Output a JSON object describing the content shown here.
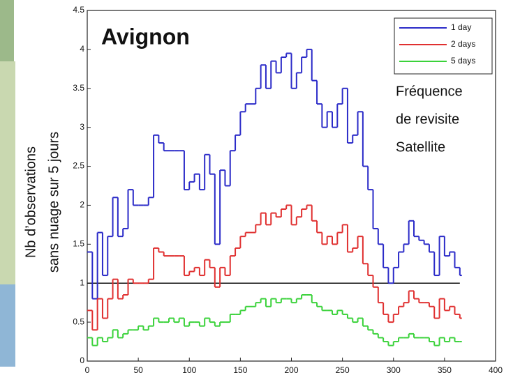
{
  "chart_data": {
    "type": "step",
    "title": "Avignon",
    "ylabel": [
      "Nb d’observations",
      "sans nuage sur 5 jours"
    ],
    "annotation": [
      "Fréquence",
      "de revisite",
      "Satellite"
    ],
    "x": [
      0,
      5,
      10,
      15,
      20,
      25,
      30,
      35,
      40,
      45,
      50,
      55,
      60,
      65,
      70,
      75,
      80,
      85,
      90,
      95,
      100,
      105,
      110,
      115,
      120,
      125,
      130,
      135,
      140,
      145,
      150,
      155,
      160,
      165,
      170,
      175,
      180,
      185,
      190,
      195,
      200,
      205,
      210,
      215,
      220,
      225,
      230,
      235,
      240,
      245,
      250,
      255,
      260,
      265,
      270,
      275,
      280,
      285,
      290,
      295,
      300,
      305,
      310,
      315,
      320,
      325,
      330,
      335,
      340,
      345,
      350,
      355,
      360,
      365
    ],
    "series": [
      {
        "name": "1 day",
        "color": "#2b2bc8",
        "values": [
          1.4,
          0.8,
          1.65,
          1.1,
          1.6,
          2.1,
          1.6,
          1.7,
          2.2,
          2.0,
          2.0,
          2.0,
          2.1,
          2.9,
          2.8,
          2.7,
          2.7,
          2.7,
          2.7,
          2.2,
          2.3,
          2.4,
          2.2,
          2.65,
          2.4,
          1.5,
          2.45,
          2.25,
          2.7,
          2.9,
          3.2,
          3.3,
          3.3,
          3.5,
          3.8,
          3.5,
          3.85,
          3.7,
          3.9,
          3.95,
          3.5,
          3.7,
          3.9,
          4.0,
          3.6,
          3.3,
          3.0,
          3.2,
          3.0,
          3.3,
          3.5,
          2.8,
          2.9,
          3.2,
          2.5,
          2.2,
          1.7,
          1.5,
          1.2,
          1.0,
          1.2,
          1.4,
          1.5,
          1.8,
          1.6,
          1.55,
          1.5,
          1.4,
          1.1,
          1.6,
          1.35,
          1.4,
          1.2,
          1.1
        ]
      },
      {
        "name": "2 days",
        "color": "#e03030",
        "values": [
          0.65,
          0.4,
          0.8,
          0.55,
          0.8,
          1.05,
          0.8,
          0.85,
          1.05,
          1.0,
          1.0,
          1.0,
          1.05,
          1.45,
          1.4,
          1.35,
          1.35,
          1.35,
          1.35,
          1.1,
          1.15,
          1.2,
          1.1,
          1.3,
          1.2,
          0.95,
          1.2,
          1.1,
          1.35,
          1.45,
          1.6,
          1.65,
          1.65,
          1.75,
          1.9,
          1.75,
          1.9,
          1.85,
          1.95,
          2.0,
          1.75,
          1.85,
          1.95,
          2.0,
          1.8,
          1.65,
          1.5,
          1.6,
          1.5,
          1.65,
          1.75,
          1.4,
          1.45,
          1.6,
          1.25,
          1.1,
          0.95,
          0.75,
          0.6,
          0.5,
          0.6,
          0.7,
          0.75,
          0.9,
          0.8,
          0.75,
          0.75,
          0.7,
          0.55,
          0.8,
          0.65,
          0.7,
          0.6,
          0.55
        ]
      },
      {
        "name": "5 days",
        "color": "#3ad23a",
        "values": [
          0.3,
          0.2,
          0.3,
          0.25,
          0.3,
          0.4,
          0.3,
          0.35,
          0.4,
          0.4,
          0.45,
          0.4,
          0.45,
          0.55,
          0.5,
          0.5,
          0.55,
          0.5,
          0.55,
          0.45,
          0.5,
          0.5,
          0.45,
          0.55,
          0.5,
          0.45,
          0.5,
          0.5,
          0.6,
          0.6,
          0.65,
          0.7,
          0.7,
          0.75,
          0.8,
          0.7,
          0.8,
          0.75,
          0.8,
          0.8,
          0.75,
          0.8,
          0.85,
          0.85,
          0.75,
          0.7,
          0.65,
          0.65,
          0.6,
          0.65,
          0.6,
          0.55,
          0.5,
          0.55,
          0.45,
          0.4,
          0.35,
          0.3,
          0.25,
          0.2,
          0.25,
          0.3,
          0.3,
          0.35,
          0.3,
          0.3,
          0.3,
          0.25,
          0.2,
          0.3,
          0.25,
          0.3,
          0.25,
          0.25
        ]
      }
    ],
    "hline": 1,
    "xlim": [
      0,
      400
    ],
    "xticks": [
      0,
      50,
      100,
      150,
      200,
      250,
      300,
      350,
      400
    ],
    "ylim": [
      0,
      4.5
    ],
    "yticks": [
      0,
      0.5,
      1,
      1.5,
      2,
      2.5,
      3,
      3.5,
      4,
      4.5
    ],
    "legend": "upper right"
  }
}
